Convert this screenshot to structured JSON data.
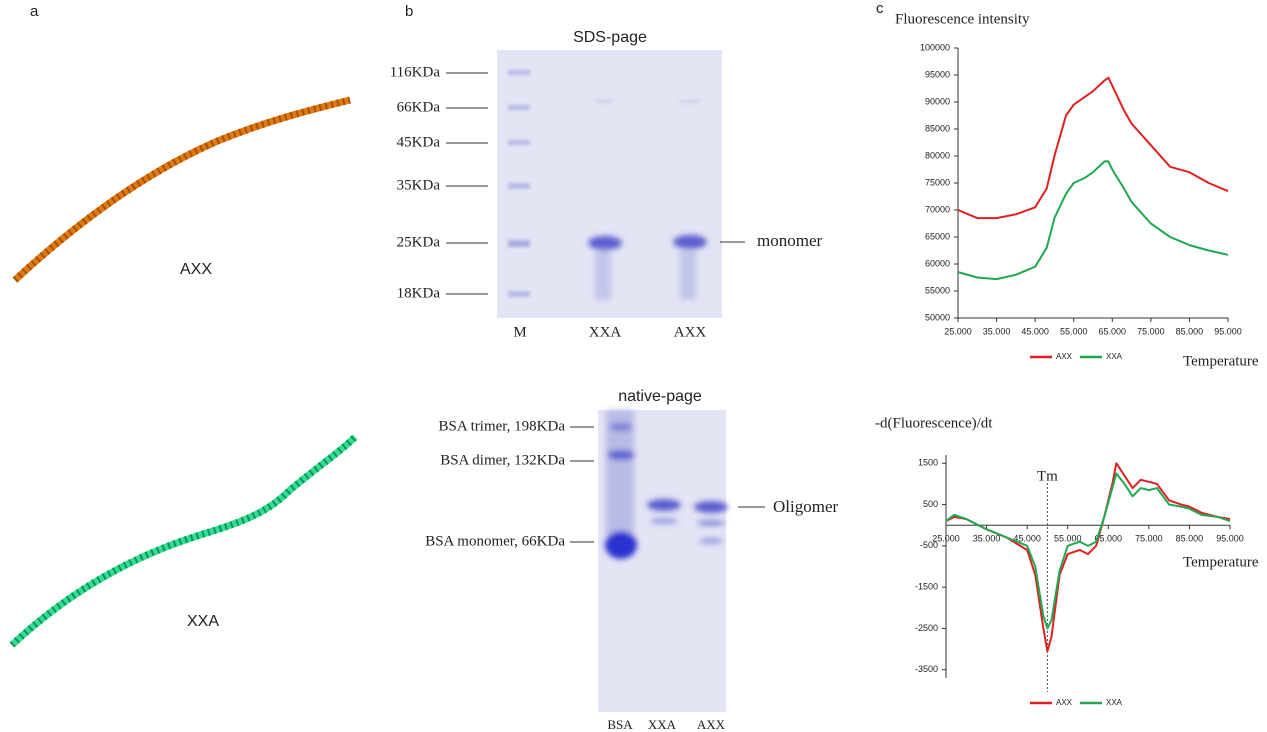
{
  "panel_a": {
    "label": "a",
    "models": [
      "AXX",
      "XXA"
    ]
  },
  "panel_b": {
    "label": "b",
    "sds": {
      "title": "SDS-page",
      "markers": [
        "116KDa",
        "66KDa",
        "45KDa",
        "35KDa",
        "25KDa",
        "18KDa"
      ],
      "band_label": "monomer",
      "lanes": [
        "M",
        "XXA",
        "AXX"
      ]
    },
    "native": {
      "title": "native-page",
      "markers": [
        "BSA trimer, 198KDa",
        "BSA dimer, 132KDa",
        "BSA monomer, 66KDa"
      ],
      "band_label": "Oligomer",
      "lanes": [
        "BSA",
        "XXA",
        "AXX"
      ]
    }
  },
  "panel_c": {
    "label": "c"
  },
  "chart_data": [
    {
      "type": "line",
      "title": "Fluorescence intensity",
      "x_label": "Temperature",
      "xlim": [
        25,
        95
      ],
      "ylim": [
        50000,
        100000
      ],
      "xticks": [
        {
          "value": 25,
          "label": "25.000"
        },
        {
          "value": 35,
          "label": "35.000"
        },
        {
          "value": 45,
          "label": "45.000"
        },
        {
          "value": 55,
          "label": "55.000"
        },
        {
          "value": 65,
          "label": "65.000"
        },
        {
          "value": 75,
          "label": "75.000"
        },
        {
          "value": 85,
          "label": "85.000"
        },
        {
          "value": 95,
          "label": "95.000"
        }
      ],
      "yticks": [
        50000,
        55000,
        60000,
        65000,
        70000,
        75000,
        80000,
        85000,
        90000,
        95000,
        100000
      ],
      "x": [
        25,
        30,
        35,
        40,
        45,
        48,
        50,
        53,
        55,
        58,
        60,
        63,
        64,
        65,
        68,
        70,
        75,
        80,
        85,
        90,
        95
      ],
      "series": [
        {
          "name": "AXX",
          "color": "#e02020",
          "values": [
            70000,
            68500,
            68500,
            69200,
            70500,
            74000,
            80000,
            87500,
            89500,
            91000,
            92000,
            94000,
            94500,
            93000,
            88500,
            86000,
            82000,
            78000,
            77000,
            75000,
            73500
          ]
        },
        {
          "name": "XXA",
          "color": "#20a850",
          "values": [
            58500,
            57500,
            57200,
            58000,
            59500,
            63000,
            68500,
            73000,
            75000,
            76000,
            77000,
            79000,
            79000,
            77500,
            74000,
            71500,
            67500,
            65000,
            63500,
            62500,
            61700
          ]
        }
      ]
    },
    {
      "type": "line",
      "title": "-d(Fluorescence)/dt",
      "x_label": "Temperature",
      "annotation": {
        "text": "Tm",
        "x": 50
      },
      "xlim": [
        25,
        95
      ],
      "ylim": [
        -3700,
        1700
      ],
      "xticks": [
        {
          "value": 25,
          "label": "25.000"
        },
        {
          "value": 35,
          "label": "35.000"
        },
        {
          "value": 45,
          "label": "45.000"
        },
        {
          "value": 55,
          "label": "55.000"
        },
        {
          "value": 65,
          "label": "65.000"
        },
        {
          "value": 75,
          "label": "75.000"
        },
        {
          "value": 85,
          "label": "85.000"
        },
        {
          "value": 95,
          "label": "95.000"
        }
      ],
      "yticks": [
        1500,
        500,
        -500,
        -1500,
        -2500,
        -3500
      ],
      "x": [
        25,
        27,
        30,
        35,
        40,
        45,
        47,
        49,
        50,
        51,
        53,
        55,
        58,
        60,
        62,
        64,
        66,
        67,
        69,
        71,
        73,
        75,
        77,
        80,
        83,
        85,
        88,
        92,
        95
      ],
      "series": [
        {
          "name": "AXX",
          "color": "#e02020",
          "values": [
            100,
            200,
            150,
            -100,
            -300,
            -600,
            -1200,
            -2500,
            -3050,
            -2700,
            -1200,
            -700,
            -600,
            -700,
            -500,
            200,
            1000,
            1500,
            1200,
            900,
            1100,
            1050,
            1000,
            600,
            500,
            450,
            300,
            200,
            150
          ]
        },
        {
          "name": "XXA",
          "color": "#20a850",
          "values": [
            100,
            250,
            150,
            -100,
            -300,
            -500,
            -1000,
            -2200,
            -2500,
            -2300,
            -1100,
            -500,
            -400,
            -500,
            -400,
            200,
            900,
            1250,
            1000,
            700,
            900,
            850,
            900,
            500,
            450,
            400,
            250,
            200,
            100
          ]
        }
      ]
    }
  ]
}
